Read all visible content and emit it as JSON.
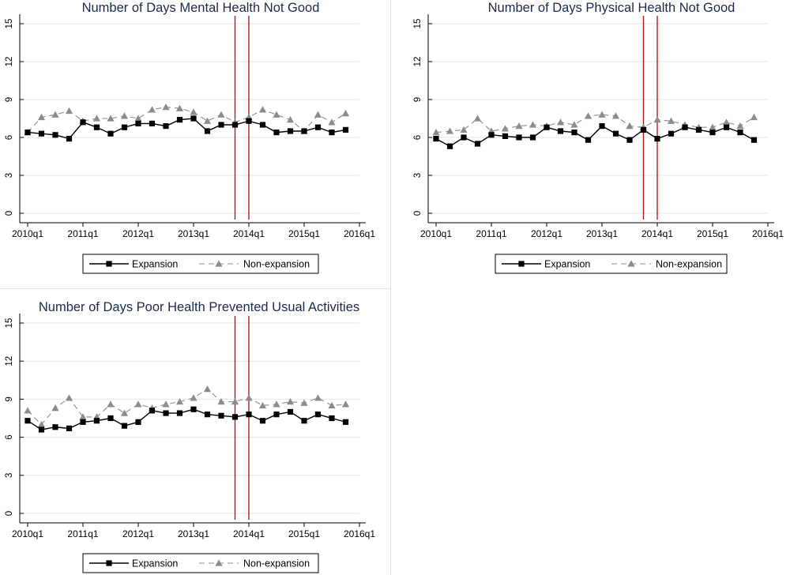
{
  "colors": {
    "expansion": "#000000",
    "nonexpansion": "#8c8c8c",
    "policy_line": "#b01c1c",
    "grid": "#e6e6e6",
    "title": "#1a2a4a"
  },
  "chart_data": [
    {
      "type": "line",
      "title": "Number of Days Mental Health Not Good",
      "x_tick_labels": [
        "2010q1",
        "2011q1",
        "2012q1",
        "2013q1",
        "2014q1",
        "2015q1",
        "2016q1"
      ],
      "y_ticks": [
        0,
        3,
        6,
        9,
        12,
        15
      ],
      "ylim": [
        0,
        15
      ],
      "grid": true,
      "legend_position": "bottom",
      "vertical_lines": [
        "2013q4",
        "2014q1"
      ],
      "x": [
        "2010q1",
        "2010q2",
        "2010q3",
        "2010q4",
        "2011q1",
        "2011q2",
        "2011q3",
        "2011q4",
        "2012q1",
        "2012q2",
        "2012q3",
        "2012q4",
        "2013q1",
        "2013q2",
        "2013q3",
        "2013q4",
        "2014q1",
        "2014q2",
        "2014q3",
        "2014q4",
        "2015q1",
        "2015q2",
        "2015q3",
        "2015q4"
      ],
      "series": [
        {
          "name": "Expansion",
          "marker": "square",
          "style": "solid",
          "values": [
            6.4,
            6.3,
            6.2,
            5.9,
            7.2,
            6.8,
            6.3,
            6.8,
            7.1,
            7.1,
            6.9,
            7.4,
            7.5,
            6.5,
            7.0,
            7.0,
            7.3,
            7.0,
            6.4,
            6.5,
            6.5,
            6.8,
            6.4,
            6.6
          ]
        },
        {
          "name": "Non-expansion",
          "marker": "triangle",
          "style": "dashed",
          "values": [
            6.4,
            7.6,
            7.8,
            8.1,
            7.3,
            7.5,
            7.5,
            7.7,
            7.5,
            8.2,
            8.4,
            8.3,
            8.0,
            7.3,
            7.8,
            7.2,
            7.6,
            8.2,
            7.8,
            7.4,
            6.5,
            7.8,
            7.2,
            7.9
          ]
        }
      ]
    },
    {
      "type": "line",
      "title": "Number of Days Physical Health Not Good",
      "x_tick_labels": [
        "2010q1",
        "2011q1",
        "2012q1",
        "2013q1",
        "2014q1",
        "2015q1",
        "2016q1"
      ],
      "y_ticks": [
        0,
        3,
        6,
        9,
        12,
        15
      ],
      "ylim": [
        0,
        15
      ],
      "grid": true,
      "legend_position": "bottom",
      "vertical_lines": [
        "2013q4",
        "2014q1"
      ],
      "x": [
        "2010q1",
        "2010q2",
        "2010q3",
        "2010q4",
        "2011q1",
        "2011q2",
        "2011q3",
        "2011q4",
        "2012q1",
        "2012q2",
        "2012q3",
        "2012q4",
        "2013q1",
        "2013q2",
        "2013q3",
        "2013q4",
        "2014q1",
        "2014q2",
        "2014q3",
        "2014q4",
        "2015q1",
        "2015q2",
        "2015q3",
        "2015q4"
      ],
      "series": [
        {
          "name": "Expansion",
          "marker": "square",
          "style": "solid",
          "values": [
            5.9,
            5.3,
            6.0,
            5.5,
            6.2,
            6.1,
            6.0,
            6.0,
            6.8,
            6.5,
            6.4,
            5.8,
            6.9,
            6.3,
            5.8,
            6.6,
            5.9,
            6.3,
            6.8,
            6.6,
            6.4,
            6.8,
            6.4,
            5.8
          ]
        },
        {
          "name": "Non-expansion",
          "marker": "triangle",
          "style": "dashed",
          "values": [
            6.4,
            6.5,
            6.6,
            7.5,
            6.5,
            6.7,
            6.9,
            7.0,
            6.9,
            7.2,
            7.0,
            7.7,
            7.8,
            7.7,
            6.9,
            6.8,
            7.4,
            7.3,
            7.0,
            6.8,
            6.8,
            7.2,
            6.9,
            7.6
          ]
        }
      ]
    },
    {
      "type": "line",
      "title": "Number of Days Poor Health Prevented Usual Activities",
      "x_tick_labels": [
        "2010q1",
        "2011q1",
        "2012q1",
        "2013q1",
        "2014q1",
        "2015q1",
        "2016q1"
      ],
      "y_ticks": [
        0,
        3,
        6,
        9,
        12,
        15
      ],
      "ylim": [
        0,
        15
      ],
      "grid": true,
      "legend_position": "bottom",
      "vertical_lines": [
        "2013q4",
        "2014q1"
      ],
      "x": [
        "2010q1",
        "2010q2",
        "2010q3",
        "2010q4",
        "2011q1",
        "2011q2",
        "2011q3",
        "2011q4",
        "2012q1",
        "2012q2",
        "2012q3",
        "2012q4",
        "2013q1",
        "2013q2",
        "2013q3",
        "2013q4",
        "2014q1",
        "2014q2",
        "2014q3",
        "2014q4",
        "2015q1",
        "2015q2",
        "2015q3",
        "2015q4"
      ],
      "series": [
        {
          "name": "Expansion",
          "marker": "square",
          "style": "solid",
          "values": [
            7.3,
            6.6,
            6.8,
            6.7,
            7.2,
            7.3,
            7.5,
            6.9,
            7.2,
            8.1,
            7.9,
            7.9,
            8.2,
            7.8,
            7.7,
            7.6,
            7.8,
            7.3,
            7.8,
            8.0,
            7.3,
            7.8,
            7.5,
            7.2
          ]
        },
        {
          "name": "Non-expansion",
          "marker": "triangle",
          "style": "dashed",
          "values": [
            8.1,
            7.0,
            8.3,
            9.1,
            7.6,
            7.6,
            8.6,
            7.9,
            8.6,
            8.3,
            8.6,
            8.8,
            9.1,
            9.8,
            8.8,
            8.8,
            9.1,
            8.5,
            8.6,
            8.8,
            8.7,
            9.1,
            8.5,
            8.6
          ]
        }
      ]
    }
  ]
}
